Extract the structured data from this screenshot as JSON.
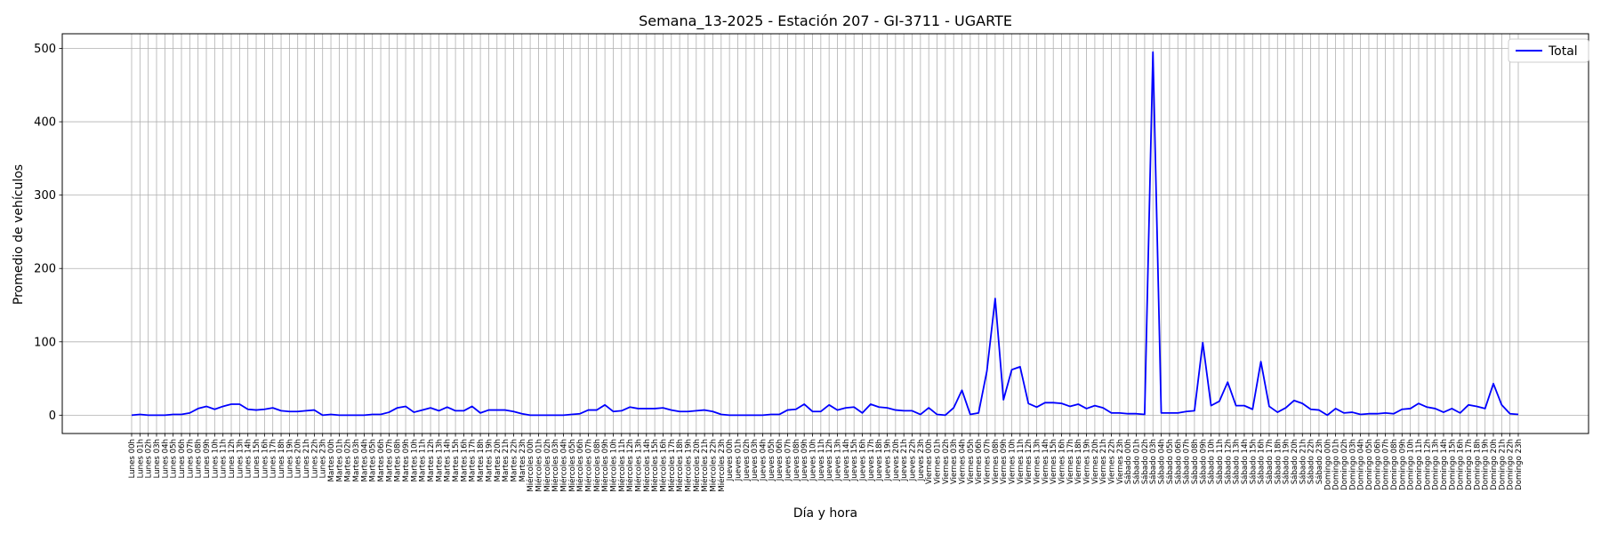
{
  "chart_data": {
    "type": "line",
    "title": "Semana_13-2025 - Estación 207 - GI-3711  - UGARTE",
    "xlabel": "Día y hora",
    "ylabel": "Promedio de vehículos",
    "ylim": [
      -25,
      520
    ],
    "yticks": [
      0,
      100,
      200,
      300,
      400,
      500
    ],
    "grid": true,
    "legend_position": "top-right",
    "days": [
      "Lunes",
      "Martes",
      "Miércoles",
      "Jueves",
      "Viernes",
      "Sábado",
      "Domingo"
    ],
    "series": [
      {
        "name": "Total",
        "color": "#0000ff",
        "values": [
          0,
          1,
          0,
          0,
          0,
          1,
          1,
          3,
          9,
          12,
          8,
          12,
          15,
          15,
          8,
          7,
          8,
          10,
          6,
          5,
          5,
          6,
          7,
          0,
          1,
          0,
          0,
          0,
          0,
          1,
          1,
          4,
          10,
          12,
          4,
          7,
          10,
          6,
          11,
          6,
          6,
          12,
          3,
          7,
          7,
          7,
          5,
          2,
          0,
          0,
          0,
          0,
          0,
          1,
          2,
          7,
          7,
          14,
          5,
          6,
          11,
          9,
          9,
          9,
          10,
          7,
          5,
          5,
          6,
          7,
          5,
          1,
          0,
          0,
          0,
          0,
          0,
          1,
          1,
          7,
          8,
          15,
          5,
          5,
          14,
          7,
          10,
          11,
          3,
          15,
          11,
          10,
          7,
          6,
          6,
          1,
          10,
          1,
          0,
          10,
          34,
          1,
          3,
          60,
          159,
          21,
          62,
          66,
          16,
          11,
          17,
          17,
          16,
          12,
          15,
          9,
          13,
          10,
          3,
          3,
          2,
          2,
          1,
          495,
          3,
          3,
          3,
          5,
          6,
          99,
          13,
          19,
          45,
          13,
          13,
          8,
          73,
          12,
          4,
          10,
          20,
          16,
          8,
          7,
          0,
          9,
          3,
          4,
          1,
          2,
          2,
          3,
          2,
          8,
          9,
          16,
          11,
          9,
          4,
          9,
          3,
          14,
          12,
          9,
          43,
          14,
          2,
          1
        ]
      }
    ]
  }
}
